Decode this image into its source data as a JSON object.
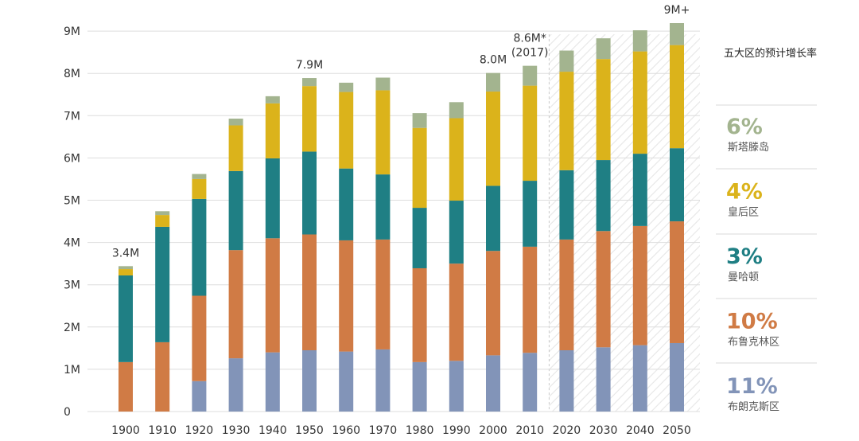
{
  "chart_data": {
    "type": "bar",
    "stacked": true,
    "categories": [
      "1900",
      "1910",
      "1920",
      "1930",
      "1940",
      "1950",
      "1960",
      "1970",
      "1980",
      "1990",
      "2000",
      "2010",
      "2020",
      "2030",
      "2040",
      "2050"
    ],
    "projected_from": "2020",
    "ylim": [
      0,
      9
    ],
    "y_ticks": [
      "0",
      "1M",
      "2M",
      "3M",
      "4M",
      "5M",
      "6M",
      "7M",
      "8M",
      "9M"
    ],
    "grid": true,
    "series": [
      {
        "name": "布朗克斯区",
        "color": "#8294b8",
        "values": [
          0,
          0,
          0.72,
          1.26,
          1.4,
          1.45,
          1.42,
          1.47,
          1.17,
          1.2,
          1.33,
          1.39,
          1.45,
          1.52,
          1.57,
          1.62
        ]
      },
      {
        "name": "布鲁克林区",
        "color": "#d07b45",
        "values": [
          1.17,
          1.64,
          2.02,
          2.56,
          2.7,
          2.74,
          2.63,
          2.6,
          2.22,
          2.3,
          2.47,
          2.51,
          2.62,
          2.75,
          2.82,
          2.88
        ]
      },
      {
        "name": "曼哈顿",
        "color": "#1f7f84",
        "values": [
          2.05,
          2.73,
          2.29,
          1.87,
          1.89,
          1.96,
          1.7,
          1.54,
          1.43,
          1.49,
          1.54,
          1.56,
          1.64,
          1.68,
          1.71,
          1.73
        ]
      },
      {
        "name": "皇后区",
        "color": "#dbb31b",
        "values": [
          0.15,
          0.28,
          0.47,
          1.08,
          1.3,
          1.55,
          1.81,
          1.99,
          1.89,
          1.95,
          2.23,
          2.25,
          2.33,
          2.39,
          2.42,
          2.44
        ]
      },
      {
        "name": "斯塔滕岛",
        "color": "#a3b48f",
        "values": [
          0.07,
          0.09,
          0.12,
          0.16,
          0.17,
          0.19,
          0.22,
          0.3,
          0.35,
          0.38,
          0.44,
          0.47,
          0.5,
          0.49,
          0.5,
          0.52
        ]
      }
    ],
    "annotations": [
      {
        "category": "1900",
        "lines": [
          "3.4M"
        ]
      },
      {
        "category": "1950",
        "lines": [
          "7.9M"
        ]
      },
      {
        "category": "2000",
        "lines": [
          "8.0M"
        ]
      },
      {
        "category": "2010",
        "lines": [
          "8.6M*",
          "(2017)"
        ]
      },
      {
        "category": "2050",
        "lines": [
          "9M+"
        ]
      }
    ],
    "legend": {
      "title": "五大区的预计增长率",
      "placement": "right",
      "items": [
        {
          "pct": "6%",
          "name": "斯塔滕岛",
          "color": "#a3b48f"
        },
        {
          "pct": "4%",
          "name": "皇后区",
          "color": "#dbb31b"
        },
        {
          "pct": "3%",
          "name": "曼哈顿",
          "color": "#1f7f84"
        },
        {
          "pct": "10%",
          "name": "布鲁克林区",
          "color": "#d07b45"
        },
        {
          "pct": "11%",
          "name": "布朗克斯区",
          "color": "#8294b8"
        }
      ]
    }
  }
}
